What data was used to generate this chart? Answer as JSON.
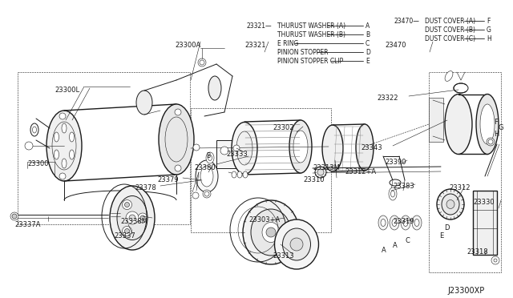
{
  "bg_color": "#ffffff",
  "line_color": "#1a1a1a",
  "diagram_code": "J23300XP",
  "fig_width": 6.4,
  "fig_height": 3.72,
  "dpi": 100,
  "legend_left_items": [
    [
      "23321",
      "THURUST WASHER (A)",
      "A"
    ],
    [
      "",
      "THURUST WASHER (B)",
      "B"
    ],
    [
      "",
      "E RING",
      "C"
    ],
    [
      "",
      "PINION STOPPER",
      "D"
    ],
    [
      "",
      "PINION STOPPER CLIP",
      "E"
    ]
  ],
  "legend_right_items": [
    [
      "23470",
      "DUST COVER (A)",
      "F"
    ],
    [
      "",
      "DUST COVER (B)",
      "G"
    ],
    [
      "",
      "DUST COVER (C)",
      "H"
    ]
  ],
  "part_numbers": [
    [
      "23300L",
      68,
      108
    ],
    [
      "23300A",
      218,
      52
    ],
    [
      "23300",
      34,
      200
    ],
    [
      "23302",
      340,
      155
    ],
    [
      "23310",
      378,
      220
    ],
    [
      "23321",
      305,
      52
    ],
    [
      "23322",
      470,
      118
    ],
    [
      "23333",
      282,
      188
    ],
    [
      "23337",
      142,
      290
    ],
    [
      "23337A",
      18,
      276
    ],
    [
      "23338M",
      150,
      272
    ],
    [
      "23343",
      450,
      180
    ],
    [
      "23378",
      168,
      230
    ],
    [
      "23379",
      196,
      220
    ],
    [
      "23380",
      242,
      205
    ],
    [
      "23383",
      490,
      228
    ],
    [
      "23312",
      560,
      230
    ],
    [
      "23312+A",
      430,
      210
    ],
    [
      "23313M",
      390,
      205
    ],
    [
      "23313",
      340,
      315
    ],
    [
      "23318",
      582,
      310
    ],
    [
      "23319",
      490,
      272
    ],
    [
      "23330",
      590,
      248
    ],
    [
      "23303+A",
      310,
      270
    ],
    [
      "23390",
      480,
      198
    ],
    [
      "23470",
      480,
      52
    ]
  ]
}
